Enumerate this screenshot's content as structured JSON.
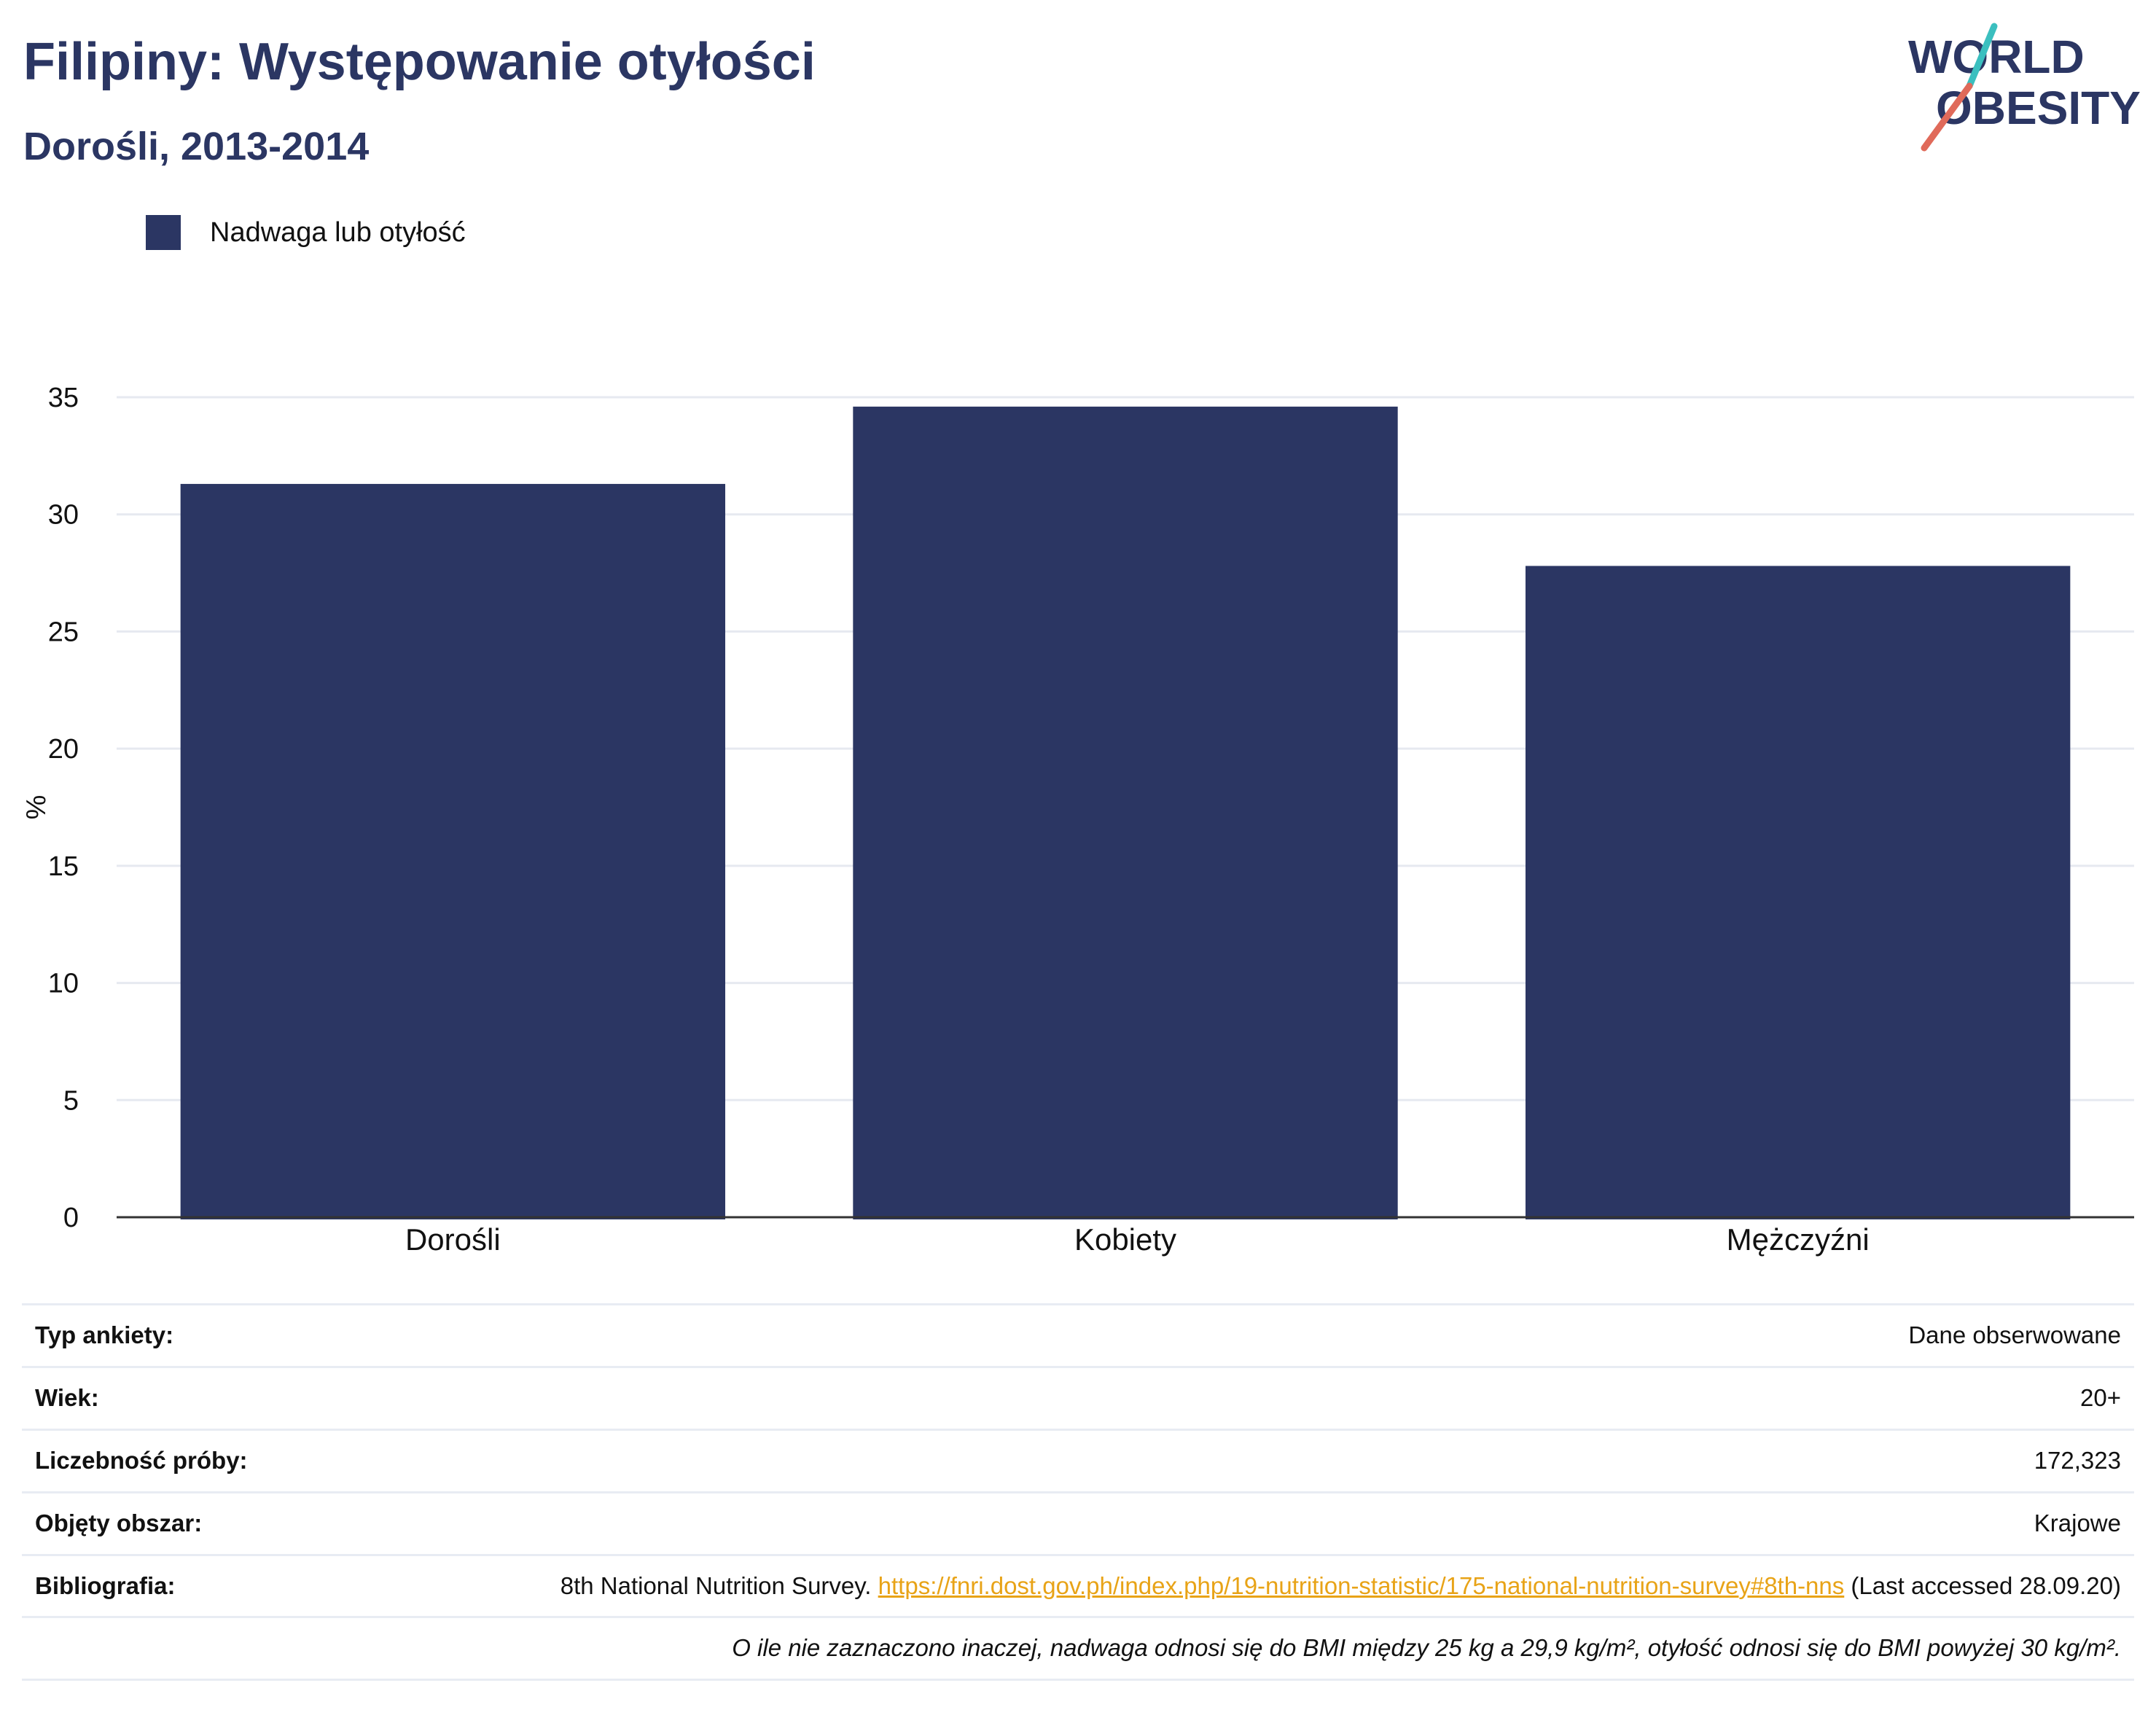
{
  "header": {
    "title": "Filipiny: Występowanie otyłości",
    "subtitle": "Dorośli, 2013-2014",
    "logo_line1": "WORLD",
    "logo_line2": "OBESITY"
  },
  "legend": {
    "label": "Nadwaga lub otyłość",
    "color": "#2b3663"
  },
  "chart_data": {
    "type": "bar",
    "categories": [
      "Dorośli",
      "Kobiety",
      "Mężczyźni"
    ],
    "series": [
      {
        "name": "Nadwaga lub otyłość",
        "values": [
          31.3,
          34.6,
          27.8
        ]
      }
    ],
    "ylabel": "%",
    "xlabel": "",
    "ylim": [
      0,
      35
    ],
    "yticks": [
      "0",
      "5",
      "10",
      "15",
      "20",
      "25",
      "30",
      "35"
    ],
    "grid": true,
    "legend_position": "top-left",
    "bar_color": "#2b3663"
  },
  "meta": {
    "survey_type_label": "Typ ankiety:",
    "survey_type_value": "Dane obserwowane",
    "age_label": "Wiek:",
    "age_value": "20+",
    "sample_label": "Liczebność próby:",
    "sample_value": "172,323",
    "area_label": "Objęty obszar:",
    "area_value": "Krajowe",
    "bib_label": "Bibliografia:",
    "bib_text": "8th National Nutrition Survey. ",
    "bib_link": "https://fnri.dost.gov.ph/index.php/19-nutrition-statistic/175-national-nutrition-survey#8th-nns",
    "bib_suffix": " (Last accessed 28.09.20)",
    "note": "O ile nie zaznaczono inaczej, nadwaga odnosi się do BMI między 25 kg a 29,9 kg/m², otyłość odnosi się do BMI powyżej 30 kg/m²."
  },
  "colors": {
    "brand_navy": "#2b3663",
    "teal": "#3bbfbf",
    "coral": "#e06a5a",
    "link": "#e8a317"
  }
}
